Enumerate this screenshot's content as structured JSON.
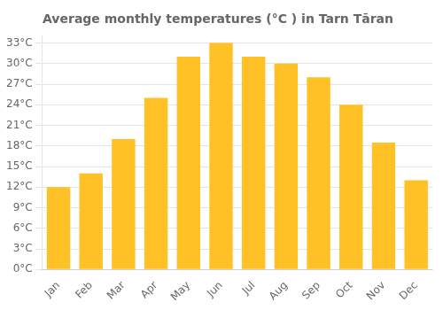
{
  "chart_data": {
    "type": "bar",
    "title": "Average monthly temperatures (°C ) in Tarn Tāran",
    "categories": [
      "Jan",
      "Feb",
      "Mar",
      "Apr",
      "May",
      "Jun",
      "Jul",
      "Aug",
      "Sep",
      "Oct",
      "Nov",
      "Dec"
    ],
    "values": [
      12,
      14,
      19,
      25,
      31,
      33,
      31,
      30,
      28,
      24,
      18.5,
      13
    ],
    "color": "#FFC125",
    "ylim": [
      0,
      34
    ],
    "yticks": [
      {
        "value": 0,
        "label": "0°C"
      },
      {
        "value": 3,
        "label": "3°C"
      },
      {
        "value": 6,
        "label": "6°C"
      },
      {
        "value": 9,
        "label": "9°C"
      },
      {
        "value": 12,
        "label": "12°C"
      },
      {
        "value": 15,
        "label": "15°C"
      },
      {
        "value": 18,
        "label": "18°C"
      },
      {
        "value": 21,
        "label": "21°C"
      },
      {
        "value": 24,
        "label": "24°C"
      },
      {
        "value": 27,
        "label": "27°C"
      },
      {
        "value": 30,
        "label": "30°C"
      },
      {
        "value": 33,
        "label": "33°C"
      }
    ],
    "grid": true
  }
}
